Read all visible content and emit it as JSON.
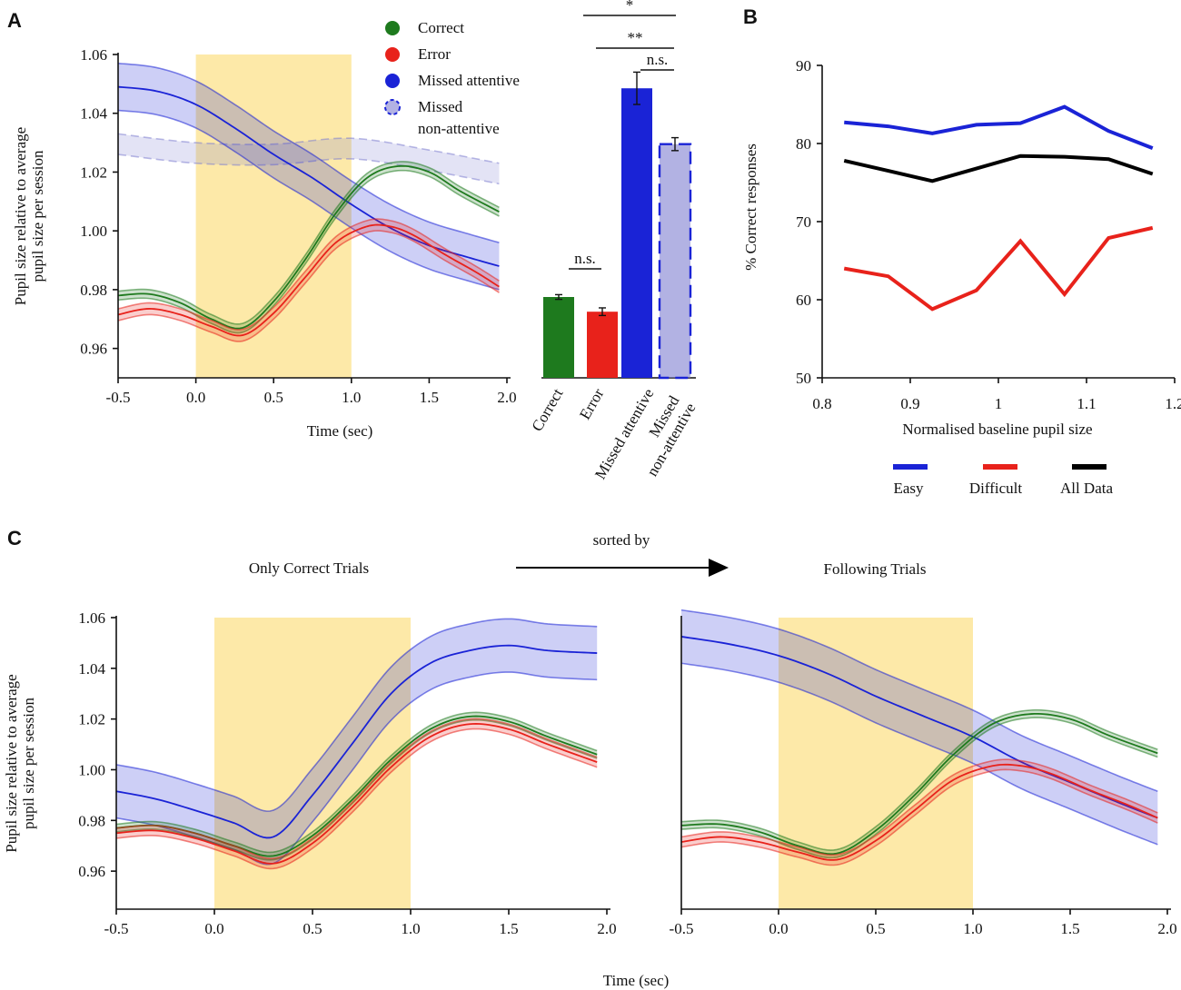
{
  "colors": {
    "correct": "#1e7a1e",
    "error": "#e8221b",
    "missed_attentive": "#1a23d6",
    "missed_nonattentive": "#7f7fd0",
    "stimulus": "#fde9a8",
    "all_data": "#000000"
  },
  "panels": {
    "a": "A",
    "b": "B",
    "c": "C"
  },
  "legend": {
    "correct": "Correct",
    "error": "Error",
    "missed_attentive": "Missed attentive",
    "missed_nonattentive_1": "Missed",
    "missed_nonattentive_2": "non-attentive"
  },
  "panel_c_header": {
    "left": "Only Correct Trials",
    "middle": "sorted by",
    "right": "Following Trials"
  },
  "chart_data": [
    {
      "id": "A-left",
      "type": "line",
      "title": "",
      "xlabel": "Time (sec)",
      "ylabel": [
        "Pupil size relative to average",
        "pupil size per session"
      ],
      "xlim": [
        -0.5,
        2.0
      ],
      "ylim": [
        0.95,
        1.06
      ],
      "xticks": [
        "-0.5",
        "0.0",
        "0.5",
        "1.0",
        "1.5",
        "2.0"
      ],
      "yticks": [
        "0.96",
        "0.98",
        "1.00",
        "1.02",
        "1.04",
        "1.06"
      ],
      "stimulus_window": [
        0.0,
        1.0
      ],
      "series": [
        {
          "name": "Missed non-attentive",
          "color_key": "missed_nonattentive",
          "dashed": true,
          "x": [
            -0.5,
            0,
            0.5,
            1.0,
            1.5,
            1.95
          ],
          "y": [
            1.0295,
            1.0265,
            1.026,
            1.028,
            1.024,
            1.0195
          ],
          "band": 0.0035
        },
        {
          "name": "Missed attentive",
          "color_key": "missed_attentive",
          "dashed": false,
          "x": [
            -0.5,
            -0.25,
            0,
            0.25,
            0.5,
            0.75,
            1.0,
            1.25,
            1.5,
            1.75,
            1.95
          ],
          "y": [
            1.049,
            1.0475,
            1.043,
            1.035,
            1.026,
            1.018,
            1.009,
            1.001,
            0.995,
            0.991,
            0.988
          ],
          "band": 0.008
        },
        {
          "name": "Correct",
          "color_key": "correct",
          "dashed": false,
          "x": [
            -0.5,
            -0.3,
            -0.1,
            0.1,
            0.3,
            0.5,
            0.7,
            0.9,
            1.1,
            1.3,
            1.5,
            1.7,
            1.95
          ],
          "y": [
            0.978,
            0.9785,
            0.9755,
            0.97,
            0.967,
            0.976,
            0.99,
            1.006,
            1.018,
            1.022,
            1.02,
            1.0135,
            1.0065
          ],
          "band": 0.0015
        },
        {
          "name": "Error",
          "color_key": "error",
          "dashed": false,
          "x": [
            -0.5,
            -0.3,
            -0.1,
            0.1,
            0.3,
            0.5,
            0.7,
            0.9,
            1.1,
            1.25,
            1.4,
            1.6,
            1.8,
            1.95
          ],
          "y": [
            0.9715,
            0.9735,
            0.9715,
            0.9675,
            0.9645,
            0.972,
            0.984,
            0.996,
            1.0015,
            1.0015,
            0.9985,
            0.992,
            0.986,
            0.981
          ],
          "band": 0.002
        }
      ]
    },
    {
      "id": "A-bar",
      "type": "bar",
      "categories": [
        "Correct",
        "Error",
        "Missed attentive",
        "Missed non-attentive"
      ],
      "values": [
        0.9775,
        0.9725,
        1.0485,
        1.0295
      ],
      "errors": [
        0.0008,
        0.0013,
        0.0055,
        0.0022
      ],
      "color_keys": [
        "correct",
        "error",
        "missed_attentive",
        "missed_nonattentive"
      ],
      "ylim": [
        0.95,
        1.06
      ],
      "significance": [
        {
          "label": "n.s.",
          "from": 0,
          "to": 1
        },
        {
          "label": "n.s.",
          "from": 2,
          "to": 3
        },
        {
          "label": "**",
          "from": 1,
          "to": 3
        },
        {
          "label": "*",
          "from": 0,
          "to": 3
        }
      ]
    },
    {
      "id": "B",
      "type": "line",
      "title": "",
      "xlabel": "Normalised baseline pupil size",
      "ylabel": "% Correct responses",
      "xlim": [
        0.8,
        1.2
      ],
      "ylim": [
        50,
        90
      ],
      "xticks": [
        "0.8",
        "0.9",
        "1",
        "1.1",
        "1.2"
      ],
      "yticks": [
        "50",
        "60",
        "70",
        "80",
        "90"
      ],
      "x": [
        0.825,
        0.875,
        0.925,
        0.975,
        1.025,
        1.075,
        1.125,
        1.175
      ],
      "series": [
        {
          "name": "Easy",
          "color_key": "missed_attentive",
          "values": [
            82.7,
            82.2,
            81.3,
            82.4,
            82.6,
            84.7,
            81.6,
            79.4
          ]
        },
        {
          "name": "Difficult",
          "color_key": "error",
          "values": [
            64.0,
            63.0,
            58.8,
            61.2,
            67.5,
            60.7,
            67.9,
            69.2
          ]
        },
        {
          "name": "All Data",
          "color_key": "all_data",
          "values": [
            77.8,
            76.5,
            75.2,
            76.8,
            78.4,
            78.3,
            78.0,
            76.1
          ]
        }
      ]
    },
    {
      "id": "C-left",
      "type": "line",
      "title": "Only Correct Trials",
      "xlabel": "",
      "ylabel": [
        "Pupil size relative to average",
        "pupil size per session"
      ],
      "xlim": [
        -0.5,
        2.0
      ],
      "ylim": [
        0.945,
        1.06
      ],
      "xticks": [
        "-0.5",
        "0.0",
        "0.5",
        "1.0",
        "1.5",
        "2.0"
      ],
      "yticks": [
        "0.96",
        "0.98",
        "1.00",
        "1.02",
        "1.04",
        "1.06"
      ],
      "stimulus_window": [
        0.0,
        1.0
      ],
      "series": [
        {
          "name": "Missed attentive",
          "color_key": "missed_attentive",
          "dashed": false,
          "x": [
            -0.5,
            -0.3,
            -0.1,
            0.1,
            0.3,
            0.5,
            0.7,
            0.9,
            1.1,
            1.3,
            1.5,
            1.7,
            1.95
          ],
          "y": [
            0.9915,
            0.9885,
            0.984,
            0.979,
            0.9735,
            0.99,
            1.01,
            1.03,
            1.042,
            1.047,
            1.049,
            1.047,
            1.046
          ],
          "band": 0.0105
        },
        {
          "name": "Correct",
          "color_key": "correct",
          "dashed": false,
          "x": [
            -0.5,
            -0.3,
            -0.1,
            0.1,
            0.3,
            0.5,
            0.7,
            0.9,
            1.1,
            1.3,
            1.5,
            1.7,
            1.95
          ],
          "y": [
            0.977,
            0.978,
            0.975,
            0.97,
            0.966,
            0.974,
            0.988,
            1.004,
            1.016,
            1.021,
            1.019,
            1.013,
            1.006
          ],
          "band": 0.0015
        },
        {
          "name": "Error",
          "color_key": "error",
          "dashed": false,
          "x": [
            -0.5,
            -0.3,
            -0.1,
            0.1,
            0.3,
            0.5,
            0.7,
            0.9,
            1.1,
            1.3,
            1.5,
            1.7,
            1.95
          ],
          "y": [
            0.975,
            0.976,
            0.973,
            0.968,
            0.963,
            0.971,
            0.985,
            1.001,
            1.013,
            1.018,
            1.016,
            1.01,
            1.003
          ],
          "band": 0.002
        }
      ]
    },
    {
      "id": "C-right",
      "type": "line",
      "title": "Following Trials",
      "xlabel": "Time (sec)",
      "ylabel": "",
      "xlim": [
        -0.5,
        2.0
      ],
      "ylim": [
        0.945,
        1.06
      ],
      "xticks": [
        "-0.5",
        "0.0",
        "0.5",
        "1.0",
        "1.5",
        "2.0"
      ],
      "yticks": [],
      "stimulus_window": [
        0.0,
        1.0
      ],
      "series": [
        {
          "name": "Missed attentive",
          "color_key": "missed_attentive",
          "dashed": false,
          "x": [
            -0.5,
            -0.25,
            0,
            0.25,
            0.5,
            0.75,
            1.0,
            1.25,
            1.5,
            1.75,
            1.95
          ],
          "y": [
            1.0525,
            1.0495,
            1.045,
            1.038,
            1.029,
            1.021,
            1.013,
            1.003,
            0.995,
            0.987,
            0.981
          ],
          "band": 0.0105
        },
        {
          "name": "Correct",
          "color_key": "correct",
          "dashed": false,
          "x": [
            -0.5,
            -0.3,
            -0.1,
            0.1,
            0.3,
            0.5,
            0.7,
            0.9,
            1.1,
            1.3,
            1.5,
            1.7,
            1.95
          ],
          "y": [
            0.978,
            0.9785,
            0.9755,
            0.97,
            0.967,
            0.976,
            0.99,
            1.006,
            1.018,
            1.022,
            1.02,
            1.0135,
            1.0065
          ],
          "band": 0.0015
        },
        {
          "name": "Error",
          "color_key": "error",
          "dashed": false,
          "x": [
            -0.5,
            -0.3,
            -0.1,
            0.1,
            0.3,
            0.5,
            0.7,
            0.9,
            1.1,
            1.25,
            1.4,
            1.6,
            1.8,
            1.95
          ],
          "y": [
            0.9715,
            0.9735,
            0.9715,
            0.9675,
            0.9645,
            0.972,
            0.984,
            0.996,
            1.0015,
            1.0015,
            0.9985,
            0.992,
            0.986,
            0.981
          ],
          "band": 0.002
        }
      ]
    }
  ]
}
